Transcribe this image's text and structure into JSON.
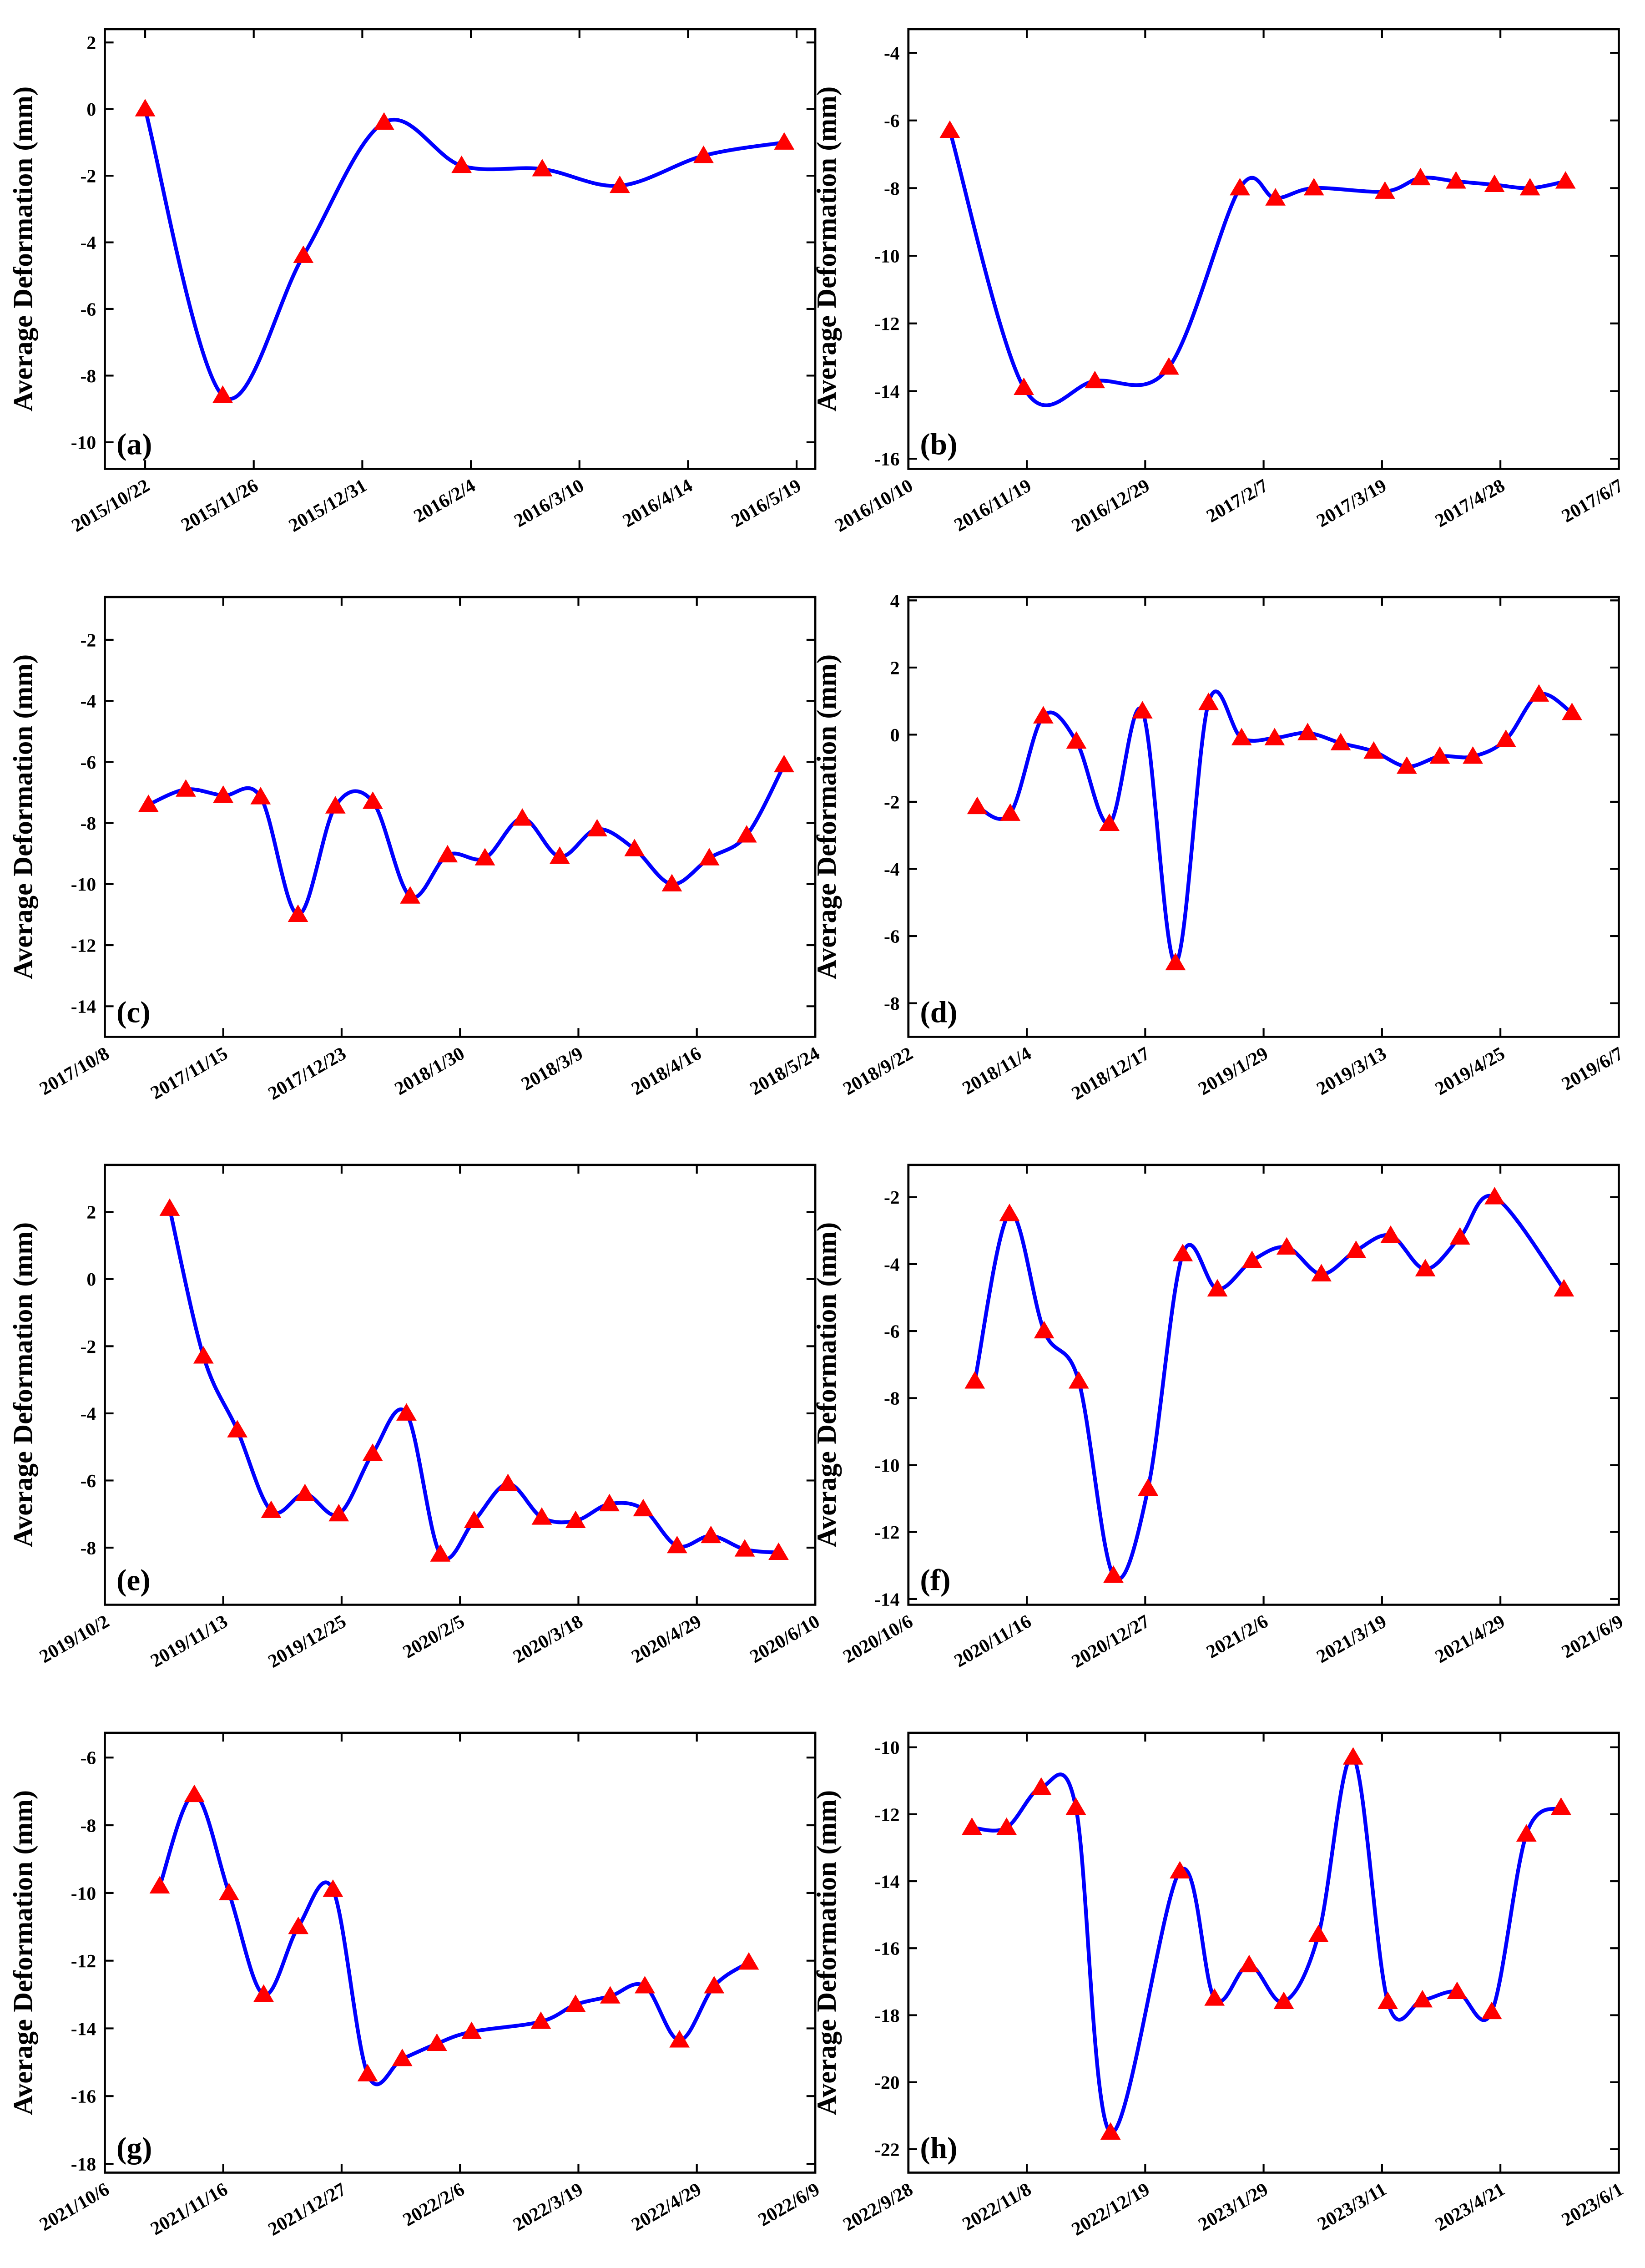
{
  "chart_data": [
    {
      "type": "line",
      "label": "(a)",
      "ylabel": "Average Deformation (mm)",
      "x": [
        "2015/10/22",
        "2015/11/16",
        "2015/12/12",
        "2016/1/7",
        "2016/2/1",
        "2016/2/27",
        "2016/3/23",
        "2016/4/19",
        "2016/5/15"
      ],
      "series": [
        {
          "color": "#0000ff",
          "marker_color": "#ff0000",
          "values": [
            0,
            -8.6,
            -4.4,
            -0.4,
            -1.7,
            -1.8,
            -2.3,
            -1.4,
            -1.0
          ]
        }
      ],
      "xlim": [
        "2015/10/9",
        "2016/5/25"
      ],
      "xticks": [
        "2015/10/22",
        "2015/11/26",
        "2015/12/31",
        "2016/2/4",
        "2016/3/10",
        "2016/4/14",
        "2016/5/19"
      ],
      "ylim": [
        -10.8,
        2.4
      ],
      "yticks": [
        -10,
        -8,
        -6,
        -4,
        -2,
        0,
        2
      ]
    },
    {
      "type": "line",
      "label": "(b)",
      "ylabel": "Average Deformation (mm)",
      "x": [
        "2016/10/24",
        "2016/11/18",
        "2016/12/12",
        "2017/1/6",
        "2017/1/30",
        "2017/2/11",
        "2017/2/24",
        "2017/3/20",
        "2017/4/1",
        "2017/4/13",
        "2017/4/26",
        "2017/5/8",
        "2017/5/20"
      ],
      "series": [
        {
          "color": "#0000ff",
          "marker_color": "#ff0000",
          "values": [
            -6.3,
            -13.9,
            -13.7,
            -13.3,
            -8.0,
            -8.3,
            -8.0,
            -8.1,
            -7.7,
            -7.8,
            -7.9,
            -8.0,
            -7.8
          ]
        }
      ],
      "xlim": [
        "2016/10/10",
        "2017/6/7"
      ],
      "xticks": [
        "2016/10/10",
        "2016/11/19",
        "2016/12/29",
        "2017/2/7",
        "2017/3/19",
        "2017/4/28",
        "2017/6/7"
      ],
      "ylim": [
        -16.3,
        -3.3
      ],
      "yticks": [
        -16,
        -14,
        -12,
        -10,
        -8,
        -6,
        -4
      ]
    },
    {
      "type": "line",
      "label": "(c)",
      "ylabel": "Average Deformation (mm)",
      "x": [
        "2017/10/22",
        "2017/11/3",
        "2017/11/15",
        "2017/11/27",
        "2017/12/9",
        "2017/12/21",
        "2018/1/2",
        "2018/1/14",
        "2018/1/26",
        "2018/2/7",
        "2018/2/19",
        "2018/3/3",
        "2018/3/15",
        "2018/3/27",
        "2018/4/8",
        "2018/4/20",
        "2018/5/2",
        "2018/5/14"
      ],
      "series": [
        {
          "color": "#0000ff",
          "marker_color": "#ff0000",
          "values": [
            -7.4,
            -6.9,
            -7.1,
            -7.15,
            -11.0,
            -7.45,
            -7.3,
            -10.4,
            -9.05,
            -9.15,
            -7.85,
            -9.1,
            -8.2,
            -8.85,
            -10.0,
            -9.15,
            -8.4,
            -6.1
          ]
        }
      ],
      "xlim": [
        "2017/10/8",
        "2018/5/24"
      ],
      "xticks": [
        "2017/10/8",
        "2017/11/15",
        "2017/12/23",
        "2018/1/30",
        "2018/3/9",
        "2018/4/16",
        "2018/5/24"
      ],
      "ylim": [
        -15,
        -0.6
      ],
      "yticks": [
        -14,
        -12,
        -10,
        -8,
        -6,
        -4,
        -2
      ]
    },
    {
      "type": "line",
      "label": "(d)",
      "ylabel": "Average Deformation (mm)",
      "x": [
        "2018/10/17",
        "2018/10/29",
        "2018/11/10",
        "2018/11/22",
        "2018/12/4",
        "2018/12/16",
        "2018/12/28",
        "2019/1/9",
        "2019/1/21",
        "2019/2/2",
        "2019/2/14",
        "2019/2/26",
        "2019/3/10",
        "2019/3/22",
        "2019/4/3",
        "2019/4/15",
        "2019/4/27",
        "2019/5/9",
        "2019/5/21"
      ],
      "series": [
        {
          "color": "#0000ff",
          "marker_color": "#ff0000",
          "values": [
            -2.15,
            -2.35,
            0.55,
            -0.2,
            -2.65,
            0.7,
            -6.8,
            0.95,
            -0.1,
            -0.1,
            0.05,
            -0.25,
            -0.5,
            -0.95,
            -0.65,
            -0.65,
            -0.15,
            1.2,
            0.65
          ]
        }
      ],
      "xlim": [
        "2018/9/22",
        "2019/6/7"
      ],
      "xticks": [
        "2018/9/22",
        "2018/11/4",
        "2018/12/17",
        "2019/1/29",
        "2019/3/13",
        "2019/4/25",
        "2019/6/7"
      ],
      "ylim": [
        -9,
        4.1
      ],
      "yticks": [
        -8,
        -6,
        -4,
        -2,
        0,
        2,
        4
      ]
    },
    {
      "type": "line",
      "label": "(e)",
      "ylabel": "Average Deformation (mm)",
      "x": [
        "2019/10/25",
        "2019/11/6",
        "2019/11/18",
        "2019/11/30",
        "2019/12/12",
        "2019/12/24",
        "2020/1/5",
        "2020/1/17",
        "2020/1/29",
        "2020/2/10",
        "2020/2/22",
        "2020/3/5",
        "2020/3/17",
        "2020/3/29",
        "2020/4/10",
        "2020/4/22",
        "2020/5/4",
        "2020/5/16",
        "2020/5/28"
      ],
      "series": [
        {
          "color": "#0000ff",
          "marker_color": "#ff0000",
          "values": [
            2.1,
            -2.3,
            -4.5,
            -6.9,
            -6.4,
            -7.0,
            -5.2,
            -4.0,
            -8.2,
            -7.2,
            -6.1,
            -7.1,
            -7.2,
            -6.7,
            -6.85,
            -7.95,
            -7.65,
            -8.05,
            -8.15
          ]
        }
      ],
      "xlim": [
        "2019/10/2",
        "2020/6/10"
      ],
      "xticks": [
        "2019/10/2",
        "2019/11/13",
        "2019/12/25",
        "2020/2/5",
        "2020/3/18",
        "2020/4/29",
        "2020/6/10"
      ],
      "ylim": [
        -9.7,
        3.4
      ],
      "yticks": [
        -8,
        -6,
        -4,
        -2,
        0,
        2
      ]
    },
    {
      "type": "line",
      "label": "(f)",
      "ylabel": "Average Deformation (mm)",
      "x": [
        "2020/10/29",
        "2020/11/10",
        "2020/11/22",
        "2020/12/4",
        "2020/12/16",
        "2020/12/28",
        "2021/1/9",
        "2021/1/21",
        "2021/2/2",
        "2021/2/14",
        "2021/2/26",
        "2021/3/10",
        "2021/3/22",
        "2021/4/3",
        "2021/4/15",
        "2021/4/27",
        "2021/5/21"
      ],
      "series": [
        {
          "color": "#0000ff",
          "marker_color": "#ff0000",
          "values": [
            -7.5,
            -2.5,
            -6.0,
            -7.5,
            -13.3,
            -10.7,
            -3.7,
            -4.75,
            -3.9,
            -3.5,
            -4.3,
            -3.6,
            -3.15,
            -4.15,
            -3.2,
            -2.0,
            -4.75
          ]
        }
      ],
      "xlim": [
        "2020/10/6",
        "2021/6/9"
      ],
      "xticks": [
        "2020/10/6",
        "2020/11/16",
        "2020/12/27",
        "2021/2/6",
        "2021/3/19",
        "2021/4/29",
        "2021/6/9"
      ],
      "ylim": [
        -14.17,
        -1.04
      ],
      "yticks": [
        -14,
        -12,
        -10,
        -8,
        -6,
        -4,
        -2
      ]
    },
    {
      "type": "line",
      "label": "(g)",
      "ylabel": "Average Deformation (mm)",
      "x": [
        "2021/10/25",
        "2021/11/6",
        "2021/11/18",
        "2021/11/30",
        "2021/12/12",
        "2021/12/24",
        "2022/1/5",
        "2022/1/17",
        "2022/1/29",
        "2022/2/10",
        "2022/3/6",
        "2022/3/18",
        "2022/3/30",
        "2022/4/11",
        "2022/4/23",
        "2022/5/5",
        "2022/5/17"
      ],
      "series": [
        {
          "color": "#0000ff",
          "marker_color": "#ff0000",
          "values": [
            -9.8,
            -7.1,
            -10.0,
            -13.0,
            -11.0,
            -9.9,
            -15.35,
            -14.9,
            -14.45,
            -14.1,
            -13.8,
            -13.3,
            -13.05,
            -12.75,
            -14.35,
            -12.75,
            -12.05
          ]
        }
      ],
      "xlim": [
        "2021/10/6",
        "2022/6/9"
      ],
      "xticks": [
        "2021/10/6",
        "2021/11/16",
        "2021/12/27",
        "2022/2/6",
        "2022/3/19",
        "2022/4/29",
        "2022/6/9"
      ],
      "ylim": [
        -18.26,
        -5.27
      ],
      "yticks": [
        -18,
        -16,
        -14,
        -12,
        -10,
        -8,
        -6
      ]
    },
    {
      "type": "line",
      "label": "(h)",
      "ylabel": "Average Deformation (mm)",
      "x": [
        "2022/10/20",
        "2022/11/1",
        "2022/11/13",
        "2022/11/25",
        "2022/12/7",
        "2022/12/31",
        "2023/1/12",
        "2023/1/24",
        "2023/2/5",
        "2023/2/17",
        "2023/3/1",
        "2023/3/13",
        "2023/3/25",
        "2023/4/6",
        "2023/4/18",
        "2023/4/30",
        "2023/5/12"
      ],
      "series": [
        {
          "color": "#0000ff",
          "marker_color": "#ff0000",
          "values": [
            -12.4,
            -12.4,
            -11.2,
            -11.8,
            -21.5,
            -13.7,
            -17.5,
            -16.5,
            -17.6,
            -15.6,
            -10.3,
            -17.6,
            -17.55,
            -17.3,
            -17.9,
            -12.6,
            -11.8
          ]
        }
      ],
      "xlim": [
        "2022/9/28",
        "2023/6/1"
      ],
      "xticks": [
        "2022/9/28",
        "2022/11/8",
        "2022/12/19",
        "2023/1/29",
        "2023/3/11",
        "2023/4/21",
        "2023/6/1"
      ],
      "ylim": [
        -22.7,
        -9.57
      ],
      "yticks": [
        -22,
        -20,
        -18,
        -16,
        -14,
        -12,
        -10
      ]
    }
  ]
}
